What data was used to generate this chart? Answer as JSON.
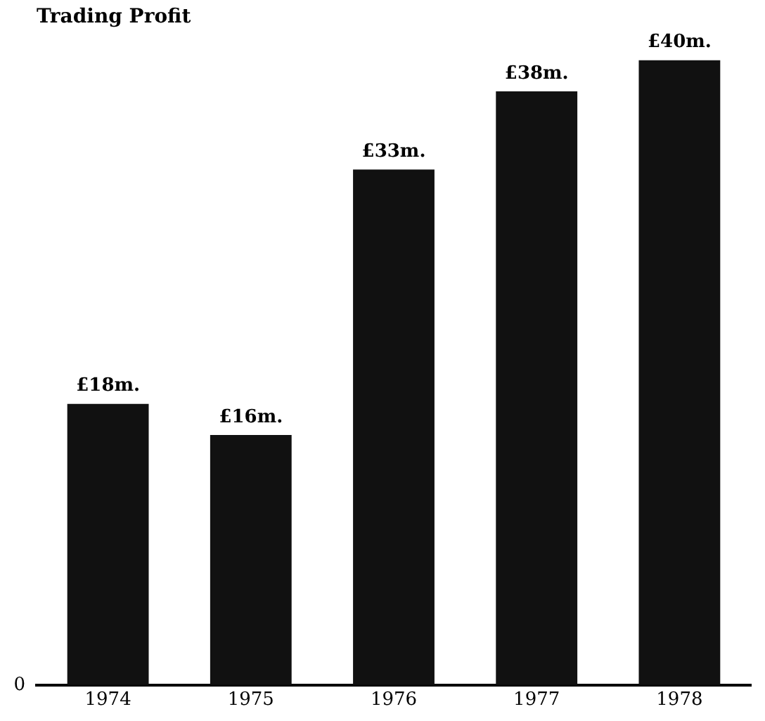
{
  "chart_data": {
    "type": "bar",
    "title": "Trading Profit",
    "categories": [
      "1974",
      "1975",
      "1976",
      "1977",
      "1978"
    ],
    "values": [
      18,
      16,
      33,
      38,
      40
    ],
    "value_labels": [
      "£18m.",
      "£16m.",
      "£33m.",
      "£38m.",
      "£40m."
    ],
    "color": "#111111",
    "annotations": [
      "0"
    ],
    "grid": false,
    "legend": false
  }
}
